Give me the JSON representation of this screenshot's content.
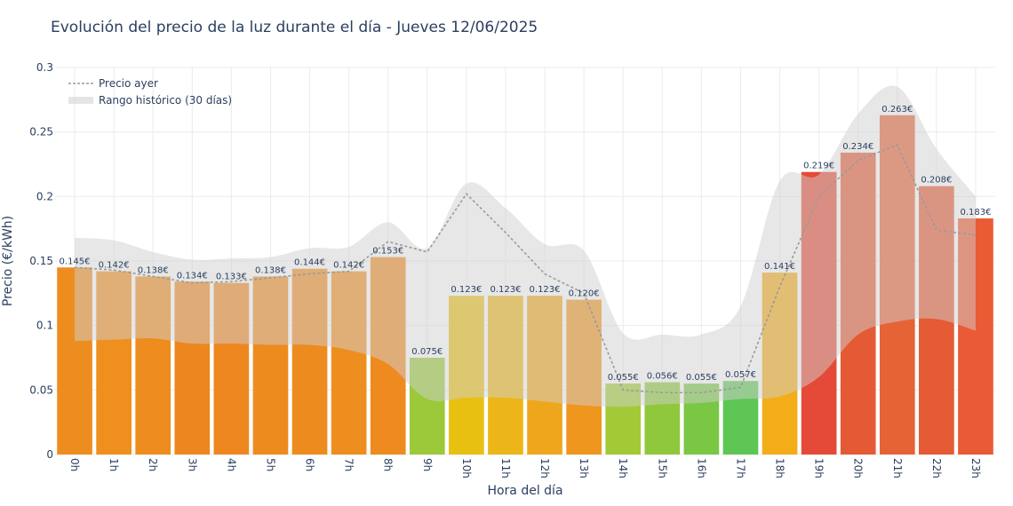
{
  "chart_data": {
    "type": "bar",
    "title": "Evolución del precio de la luz durante el día - Jueves 12/06/2025",
    "xlabel": "Hora del día",
    "ylabel": "Precio (€/kWh)",
    "ylim": [
      0,
      0.3
    ],
    "yticks": [
      "0",
      "0.05",
      "0.1",
      "0.15",
      "0.2",
      "0.25",
      "0.3"
    ],
    "categories": [
      "0h",
      "1h",
      "2h",
      "3h",
      "4h",
      "5h",
      "6h",
      "7h",
      "8h",
      "9h",
      "10h",
      "11h",
      "12h",
      "13h",
      "14h",
      "15h",
      "16h",
      "17h",
      "18h",
      "19h",
      "20h",
      "21h",
      "22h",
      "23h"
    ],
    "series": [
      {
        "name": "",
        "values": [
          0.145,
          0.142,
          0.138,
          0.134,
          0.133,
          0.138,
          0.144,
          0.142,
          0.153,
          0.075,
          0.123,
          0.123,
          0.123,
          0.12,
          0.055,
          0.056,
          0.055,
          0.057,
          0.141,
          0.219,
          0.234,
          0.263,
          0.208,
          0.183
        ],
        "labels": [
          "0.145€",
          "0.142€",
          "0.138€",
          "0.134€",
          "0.133€",
          "0.138€",
          "0.144€",
          "0.142€",
          "0.153€",
          "0.075€",
          "0.123€",
          "0.123€",
          "0.123€",
          "0.120€",
          "0.055€",
          "0.056€",
          "0.055€",
          "0.057€",
          "0.141€",
          "0.219€",
          "0.234€",
          "0.263€",
          "0.208€",
          "0.183€"
        ],
        "colors": [
          "#ee8d1f",
          "#ef8f1e",
          "#ee8c1f",
          "#ee8620",
          "#ee8720",
          "#ee8b1f",
          "#ee8b1f",
          "#ee8e1f",
          "#ee8a1f",
          "#9bc93a",
          "#e8c012",
          "#ecb618",
          "#eea71c",
          "#ef961e",
          "#a2ca37",
          "#8fc83c",
          "#7ac744",
          "#5ec654",
          "#f2ad19",
          "#e44a37",
          "#e45a35",
          "#e66336",
          "#e45b34",
          "#ea5a35"
        ]
      },
      {
        "name": "Precio ayer",
        "values": [
          0.145,
          0.143,
          0.138,
          0.133,
          0.134,
          0.137,
          0.14,
          0.142,
          0.165,
          0.157,
          0.202,
          0.172,
          0.14,
          0.125,
          0.05,
          0.048,
          0.048,
          0.052,
          0.13,
          0.2,
          0.228,
          0.24,
          0.174,
          0.17
        ],
        "color": "#9a9a9a"
      },
      {
        "name": "Rango histórico (30 días)",
        "upper": [
          0.168,
          0.166,
          0.157,
          0.151,
          0.152,
          0.153,
          0.16,
          0.161,
          0.18,
          0.16,
          0.21,
          0.191,
          0.163,
          0.158,
          0.094,
          0.093,
          0.093,
          0.115,
          0.212,
          0.217,
          0.264,
          0.285,
          0.237,
          0.2
        ],
        "lower": [
          0.088,
          0.089,
          0.09,
          0.086,
          0.086,
          0.085,
          0.085,
          0.081,
          0.07,
          0.043,
          0.044,
          0.044,
          0.041,
          0.038,
          0.037,
          0.039,
          0.04,
          0.043,
          0.045,
          0.06,
          0.093,
          0.103,
          0.105,
          0.096
        ],
        "color": "#d3d3d3"
      }
    ],
    "legend_position": "top-left",
    "grid": true
  }
}
